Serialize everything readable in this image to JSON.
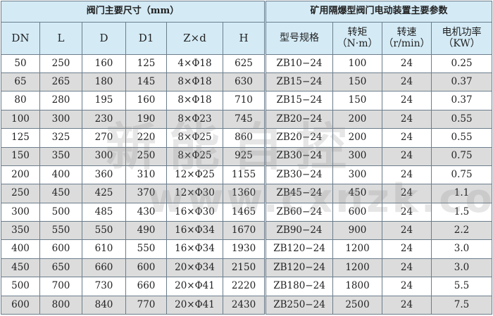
{
  "header": {
    "left_title": "阀门主要尺寸（mm）",
    "right_title": "矿用隔爆型阀门电动装置主要参数"
  },
  "columns": [
    {
      "line1": "DN",
      "line2": ""
    },
    {
      "line1": "L",
      "line2": ""
    },
    {
      "line1": "D",
      "line2": ""
    },
    {
      "line1": "D1",
      "line2": ""
    },
    {
      "line1": "Z×d",
      "line2": ""
    },
    {
      "line1": "H",
      "line2": ""
    },
    {
      "line1": "型号规格",
      "line2": ""
    },
    {
      "line1": "转矩",
      "line2": "（N·m）"
    },
    {
      "line1": "转速",
      "line2": "（r/min）"
    },
    {
      "line1": "电机功率",
      "line2": "（KW）"
    }
  ],
  "rows": [
    [
      "50",
      "250",
      "160",
      "125",
      "4×Φ18",
      "625",
      "ZB10−24",
      "100",
      "24",
      "0.25"
    ],
    [
      "65",
      "265",
      "180",
      "145",
      "8×Φ18",
      "630",
      "ZB15−24",
      "150",
      "24",
      "0.37"
    ],
    [
      "80",
      "280",
      "195",
      "160",
      "8×Φ18",
      "710",
      "ZB15−24",
      "150",
      "24",
      "0.37"
    ],
    [
      "100",
      "300",
      "230",
      "190",
      "8×Φ23",
      "745",
      "ZB20−24",
      "200",
      "24",
      "0.55"
    ],
    [
      "125",
      "325",
      "270",
      "220",
      "8×Φ25",
      "860",
      "ZB20−24",
      "200",
      "24",
      "0.55"
    ],
    [
      "150",
      "350",
      "300",
      "250",
      "8×Φ25",
      "925",
      "ZB30−24",
      "300",
      "24",
      "0.75"
    ],
    [
      "200",
      "400",
      "360",
      "310",
      "12×Φ25",
      "1155",
      "ZB30−24",
      "300",
      "24",
      "0.75"
    ],
    [
      "250",
      "450",
      "425",
      "370",
      "12×Φ30",
      "1360",
      "ZB45−24",
      "450",
      "24",
      "1.1"
    ],
    [
      "300",
      "500",
      "485",
      "430",
      "16×Φ30",
      "1465",
      "ZB60−24",
      "600",
      "24",
      "1.5"
    ],
    [
      "350",
      "550",
      "550",
      "490",
      "16×Φ34",
      "1670",
      "ZB90−24",
      "900",
      "24",
      "2.2"
    ],
    [
      "400",
      "600",
      "610",
      "550",
      "16×Φ34",
      "1930",
      "ZB120−24",
      "1200",
      "24",
      "3.0"
    ],
    [
      "450",
      "650",
      "660",
      "600",
      "20×Φ34",
      "2150",
      "ZB120−24",
      "1200",
      "24",
      "3.0"
    ],
    [
      "500",
      "700",
      "730",
      "660",
      "20×Φ41",
      "2220",
      "ZB180−24",
      "1800",
      "24",
      "5.5"
    ],
    [
      "600",
      "800",
      "840",
      "770",
      "20×Φ41",
      "2430",
      "ZB250−24",
      "2500",
      "24",
      "7.5"
    ]
  ],
  "watermark": {
    "text": "新能自控",
    "url": "www.cxnzk.com"
  }
}
